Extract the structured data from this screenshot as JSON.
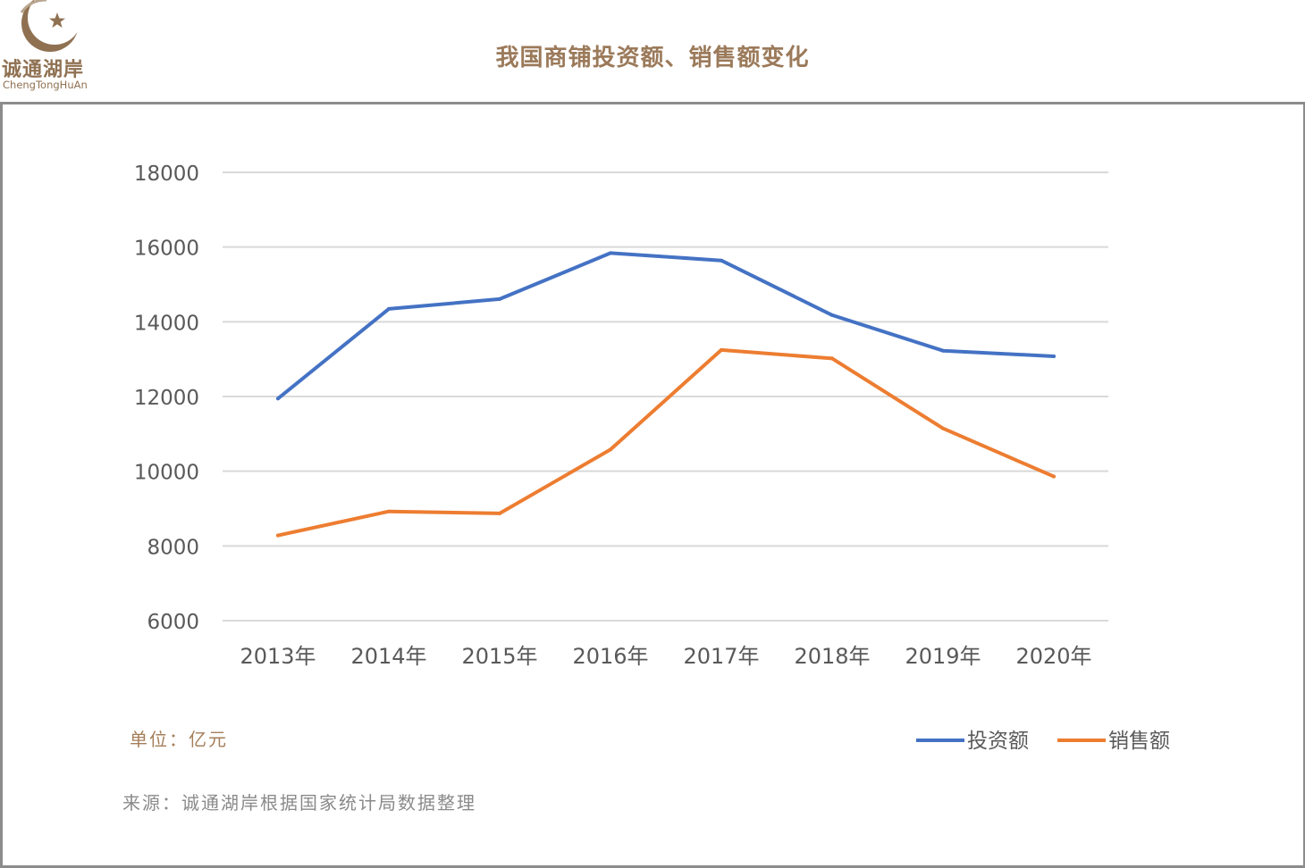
{
  "header": {
    "logo_name": "诚通湖岸",
    "logo_name_en": "ChengTongHuAn",
    "title": "我国商铺投资额、销售额变化",
    "brand_color": "#8f7152"
  },
  "notes": {
    "unit": "单位：亿元",
    "source": "来源：诚通湖岸根据国家统计局数据整理"
  },
  "chart_data": {
    "type": "line",
    "title": "",
    "xlabel": "",
    "ylabel": "",
    "categories": [
      "2013年",
      "2014年",
      "2015年",
      "2016年",
      "2017年",
      "2018年",
      "2019年",
      "2020年"
    ],
    "yticks": [
      "6000",
      "8000",
      "10000",
      "12000",
      "14000",
      "16000",
      "18000"
    ],
    "ylim": [
      6000,
      18000
    ],
    "grid": true,
    "legend_position": "bottom-right",
    "series": [
      {
        "name": "投资额",
        "color": "#4472c4",
        "values": [
          11945,
          14346,
          14607,
          15838,
          15640,
          14177,
          13226,
          13076
        ]
      },
      {
        "name": "销售额",
        "color": "#ed7d31",
        "values": [
          8281,
          8923,
          8870,
          10580,
          13245,
          13018,
          11146,
          9857
        ]
      }
    ]
  }
}
